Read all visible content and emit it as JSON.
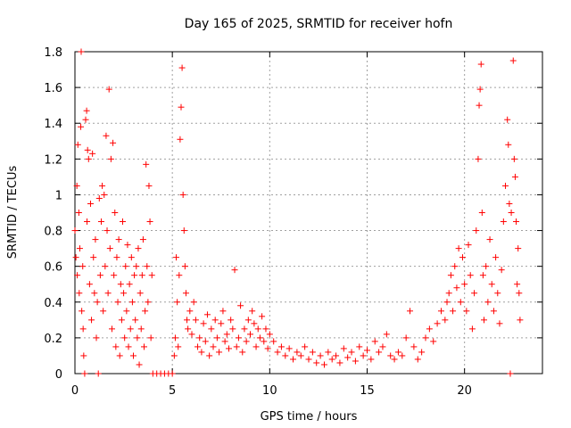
{
  "chart_data": {
    "type": "scatter",
    "title": "Day 165 of 2025, SRMTID for receiver hofn",
    "xlabel": "GPS time / hours",
    "ylabel": "SRMTID / TECUs",
    "xlim": [
      0,
      24
    ],
    "ylim": [
      0,
      1.8
    ],
    "x_ticks": [
      0,
      5,
      10,
      15,
      20
    ],
    "y_ticks": [
      0,
      0.2,
      0.4,
      0.6,
      0.8,
      1,
      1.2,
      1.4,
      1.6,
      1.8
    ],
    "x_tick_labels": [
      "0",
      "5",
      "10",
      "15",
      "20"
    ],
    "y_tick_labels": [
      "0",
      "0.2",
      "0.4",
      "0.6",
      "0.8",
      "1",
      "1.2",
      "1.4",
      "1.6",
      "1.8"
    ],
    "grid": true,
    "marker": "+",
    "color": "#ff0000",
    "series": [
      {
        "name": "SRMTID",
        "points": [
          [
            0.0,
            0.8
          ],
          [
            0.05,
            0.65
          ],
          [
            0.1,
            1.05
          ],
          [
            0.12,
            0.55
          ],
          [
            0.15,
            1.28
          ],
          [
            0.2,
            0.9
          ],
          [
            0.22,
            0.45
          ],
          [
            0.25,
            0.7
          ],
          [
            0.3,
            1.38
          ],
          [
            0.32,
            1.8
          ],
          [
            0.35,
            0.35
          ],
          [
            0.4,
            0.6
          ],
          [
            0.42,
            0.25
          ],
          [
            0.45,
            0.1
          ],
          [
            0.5,
            0.0
          ],
          [
            0.55,
            1.42
          ],
          [
            0.6,
            1.47
          ],
          [
            0.62,
            0.85
          ],
          [
            0.65,
            1.25
          ],
          [
            0.7,
            1.2
          ],
          [
            0.75,
            0.5
          ],
          [
            0.8,
            0.95
          ],
          [
            0.85,
            0.3
          ],
          [
            0.9,
            1.23
          ],
          [
            0.95,
            0.65
          ],
          [
            1.0,
            0.45
          ],
          [
            1.05,
            0.75
          ],
          [
            1.1,
            0.2
          ],
          [
            1.15,
            0.4
          ],
          [
            1.2,
            0.0
          ],
          [
            1.25,
            0.98
          ],
          [
            1.3,
            0.55
          ],
          [
            1.35,
            0.85
          ],
          [
            1.4,
            1.05
          ],
          [
            1.45,
            0.35
          ],
          [
            1.5,
            1.0
          ],
          [
            1.55,
            0.6
          ],
          [
            1.6,
            1.33
          ],
          [
            1.65,
            0.8
          ],
          [
            1.7,
            0.45
          ],
          [
            1.75,
            1.59
          ],
          [
            1.8,
            0.7
          ],
          [
            1.85,
            1.2
          ],
          [
            1.9,
            0.25
          ],
          [
            1.95,
            1.29
          ],
          [
            2.0,
            0.55
          ],
          [
            2.05,
            0.9
          ],
          [
            2.1,
            0.15
          ],
          [
            2.15,
            0.65
          ],
          [
            2.2,
            0.4
          ],
          [
            2.25,
            0.75
          ],
          [
            2.3,
            0.1
          ],
          [
            2.35,
            0.5
          ],
          [
            2.4,
            0.3
          ],
          [
            2.45,
            0.85
          ],
          [
            2.5,
            0.45
          ],
          [
            2.55,
            0.2
          ],
          [
            2.6,
            0.6
          ],
          [
            2.65,
            0.35
          ],
          [
            2.7,
            0.72
          ],
          [
            2.75,
            0.15
          ],
          [
            2.8,
            0.5
          ],
          [
            2.85,
            0.25
          ],
          [
            2.9,
            0.65
          ],
          [
            2.95,
            0.4
          ],
          [
            3.0,
            0.1
          ],
          [
            3.05,
            0.55
          ],
          [
            3.1,
            0.3
          ],
          [
            3.15,
            0.6
          ],
          [
            3.2,
            0.2
          ],
          [
            3.25,
            0.7
          ],
          [
            3.3,
            0.05
          ],
          [
            3.35,
            0.45
          ],
          [
            3.4,
            0.25
          ],
          [
            3.45,
            0.55
          ],
          [
            3.5,
            0.75
          ],
          [
            3.55,
            0.15
          ],
          [
            3.6,
            0.35
          ],
          [
            3.65,
            1.17
          ],
          [
            3.7,
            0.6
          ],
          [
            3.75,
            0.4
          ],
          [
            3.8,
            1.05
          ],
          [
            3.85,
            0.85
          ],
          [
            3.9,
            0.2
          ],
          [
            3.95,
            0.55
          ],
          [
            4.0,
            0.0
          ],
          [
            4.2,
            0.0
          ],
          [
            4.4,
            0.0
          ],
          [
            4.6,
            0.0
          ],
          [
            4.8,
            0.0
          ],
          [
            5.0,
            0.0
          ],
          [
            5.1,
            0.1
          ],
          [
            5.15,
            0.2
          ],
          [
            5.2,
            0.65
          ],
          [
            5.25,
            0.4
          ],
          [
            5.3,
            0.15
          ],
          [
            5.35,
            0.55
          ],
          [
            5.4,
            1.31
          ],
          [
            5.45,
            1.49
          ],
          [
            5.5,
            1.71
          ],
          [
            5.55,
            1.0
          ],
          [
            5.6,
            0.8
          ],
          [
            5.65,
            0.6
          ],
          [
            5.7,
            0.45
          ],
          [
            5.75,
            0.3
          ],
          [
            5.8,
            0.25
          ],
          [
            5.9,
            0.35
          ],
          [
            6.0,
            0.22
          ],
          [
            6.1,
            0.4
          ],
          [
            6.2,
            0.3
          ],
          [
            6.3,
            0.15
          ],
          [
            6.4,
            0.2
          ],
          [
            6.5,
            0.12
          ],
          [
            6.6,
            0.28
          ],
          [
            6.7,
            0.18
          ],
          [
            6.8,
            0.33
          ],
          [
            6.9,
            0.1
          ],
          [
            7.0,
            0.25
          ],
          [
            7.1,
            0.15
          ],
          [
            7.2,
            0.3
          ],
          [
            7.3,
            0.2
          ],
          [
            7.4,
            0.12
          ],
          [
            7.5,
            0.28
          ],
          [
            7.6,
            0.35
          ],
          [
            7.7,
            0.18
          ],
          [
            7.8,
            0.22
          ],
          [
            7.9,
            0.14
          ],
          [
            8.0,
            0.3
          ],
          [
            8.1,
            0.25
          ],
          [
            8.2,
            0.58
          ],
          [
            8.3,
            0.15
          ],
          [
            8.4,
            0.2
          ],
          [
            8.5,
            0.38
          ],
          [
            8.6,
            0.12
          ],
          [
            8.7,
            0.25
          ],
          [
            8.8,
            0.18
          ],
          [
            8.9,
            0.3
          ],
          [
            9.0,
            0.22
          ],
          [
            9.1,
            0.35
          ],
          [
            9.2,
            0.28
          ],
          [
            9.3,
            0.15
          ],
          [
            9.4,
            0.25
          ],
          [
            9.5,
            0.2
          ],
          [
            9.6,
            0.32
          ],
          [
            9.7,
            0.18
          ],
          [
            9.8,
            0.25
          ],
          [
            9.9,
            0.14
          ],
          [
            10.0,
            0.22
          ],
          [
            10.2,
            0.18
          ],
          [
            10.4,
            0.12
          ],
          [
            10.6,
            0.15
          ],
          [
            10.8,
            0.1
          ],
          [
            11.0,
            0.14
          ],
          [
            11.2,
            0.08
          ],
          [
            11.4,
            0.12
          ],
          [
            11.6,
            0.1
          ],
          [
            11.8,
            0.15
          ],
          [
            12.0,
            0.08
          ],
          [
            12.2,
            0.12
          ],
          [
            12.4,
            0.06
          ],
          [
            12.6,
            0.1
          ],
          [
            12.8,
            0.05
          ],
          [
            13.0,
            0.12
          ],
          [
            13.2,
            0.08
          ],
          [
            13.4,
            0.1
          ],
          [
            13.6,
            0.06
          ],
          [
            13.8,
            0.14
          ],
          [
            14.0,
            0.09
          ],
          [
            14.2,
            0.12
          ],
          [
            14.4,
            0.07
          ],
          [
            14.6,
            0.15
          ],
          [
            14.8,
            0.1
          ],
          [
            15.0,
            0.13
          ],
          [
            15.2,
            0.08
          ],
          [
            15.4,
            0.18
          ],
          [
            15.6,
            0.12
          ],
          [
            15.8,
            0.15
          ],
          [
            16.0,
            0.22
          ],
          [
            16.2,
            0.1
          ],
          [
            16.4,
            0.08
          ],
          [
            16.6,
            0.12
          ],
          [
            16.8,
            0.1
          ],
          [
            17.0,
            0.2
          ],
          [
            17.2,
            0.35
          ],
          [
            17.4,
            0.15
          ],
          [
            17.6,
            0.08
          ],
          [
            17.8,
            0.12
          ],
          [
            18.0,
            0.2
          ],
          [
            18.2,
            0.25
          ],
          [
            18.4,
            0.18
          ],
          [
            18.6,
            0.28
          ],
          [
            18.8,
            0.35
          ],
          [
            19.0,
            0.3
          ],
          [
            19.1,
            0.4
          ],
          [
            19.2,
            0.45
          ],
          [
            19.3,
            0.55
          ],
          [
            19.4,
            0.35
          ],
          [
            19.5,
            0.6
          ],
          [
            19.6,
            0.48
          ],
          [
            19.7,
            0.7
          ],
          [
            19.8,
            0.4
          ],
          [
            19.9,
            0.65
          ],
          [
            20.0,
            0.5
          ],
          [
            20.1,
            0.35
          ],
          [
            20.2,
            0.72
          ],
          [
            20.3,
            0.55
          ],
          [
            20.4,
            0.25
          ],
          [
            20.5,
            0.45
          ],
          [
            20.6,
            0.8
          ],
          [
            20.7,
            1.2
          ],
          [
            20.75,
            1.5
          ],
          [
            20.8,
            1.59
          ],
          [
            20.85,
            1.73
          ],
          [
            20.9,
            0.9
          ],
          [
            20.95,
            0.55
          ],
          [
            21.0,
            0.3
          ],
          [
            21.1,
            0.6
          ],
          [
            21.2,
            0.4
          ],
          [
            21.3,
            0.75
          ],
          [
            21.4,
            0.5
          ],
          [
            21.5,
            0.35
          ],
          [
            21.6,
            0.65
          ],
          [
            21.7,
            0.45
          ],
          [
            21.8,
            0.28
          ],
          [
            21.9,
            0.58
          ],
          [
            22.0,
            0.85
          ],
          [
            22.1,
            1.05
          ],
          [
            22.2,
            1.42
          ],
          [
            22.25,
            1.28
          ],
          [
            22.3,
            0.95
          ],
          [
            22.35,
            0.0
          ],
          [
            22.4,
            0.9
          ],
          [
            22.5,
            1.75
          ],
          [
            22.55,
            1.2
          ],
          [
            22.6,
            1.1
          ],
          [
            22.65,
            0.85
          ],
          [
            22.7,
            0.5
          ],
          [
            22.75,
            0.7
          ],
          [
            22.8,
            0.45
          ],
          [
            22.85,
            0.3
          ]
        ]
      }
    ]
  }
}
